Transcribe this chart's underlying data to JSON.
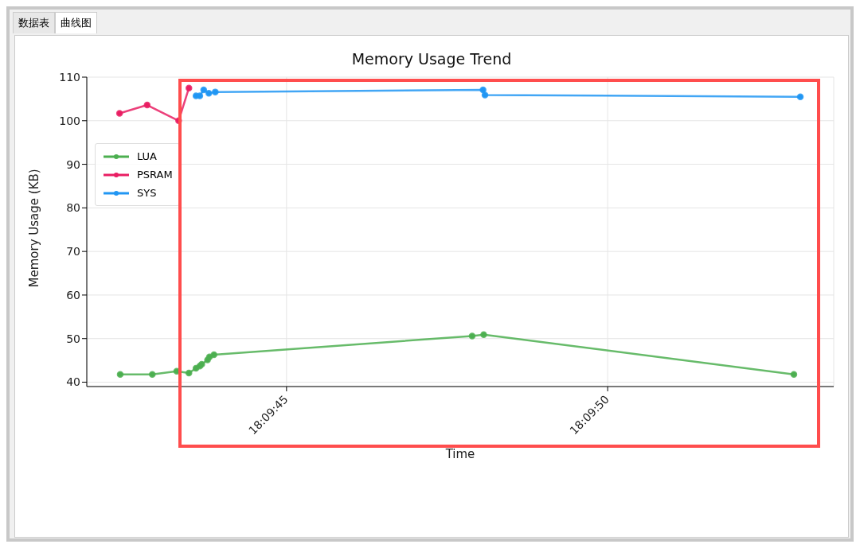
{
  "chart_data": {
    "type": "line",
    "title": "Memory Usage Trend",
    "xlabel": "Time",
    "ylabel": "Memory Usage (KB)",
    "annotations": [
      "数据表",
      "曲线图"
    ],
    "xlim": [
      18.1616361,
      18.1648667
    ],
    "xticks": [
      {
        "value": 18.1625,
        "label": "18:09:45"
      },
      {
        "value": 18.1638889,
        "label": "18:09:50"
      }
    ],
    "ylim": [
      39,
      110
    ],
    "yticks": [
      40,
      50,
      60,
      70,
      80,
      90,
      100,
      110
    ],
    "grid": true,
    "legend": "top left",
    "marker": "circle",
    "line_style": "solid",
    "series": [
      {
        "name": "LUA",
        "color": "#4caf50",
        "x": [
          18.1617806,
          18.1619194,
          18.162025,
          18.1620778,
          18.1621083,
          18.162125,
          18.1621333,
          18.1621583,
          18.1621667,
          18.1621861,
          18.1633028,
          18.1633528,
          18.1646944
        ],
        "values": [
          41.8,
          41.8,
          42.5,
          42.1,
          43.2,
          43.7,
          44.1,
          45.1,
          45.8,
          46.3,
          50.6,
          50.9,
          41.8
        ]
      },
      {
        "name": "PSRAM",
        "color": "#e91e63",
        "x": [
          18.1617778,
          18.1618972,
          18.1620333,
          18.1620778
        ],
        "values": [
          101.7,
          103.6,
          100.0,
          107.5
        ]
      },
      {
        "name": "SYS",
        "color": "#2196f3",
        "x": [
          18.1621083,
          18.162125,
          18.1621417,
          18.1621639,
          18.1621917,
          18.16335,
          18.1633583,
          18.1647222
        ],
        "values": [
          105.7,
          105.7,
          107.1,
          106.3,
          106.6,
          107.1,
          105.9,
          105.5
        ]
      }
    ]
  }
}
